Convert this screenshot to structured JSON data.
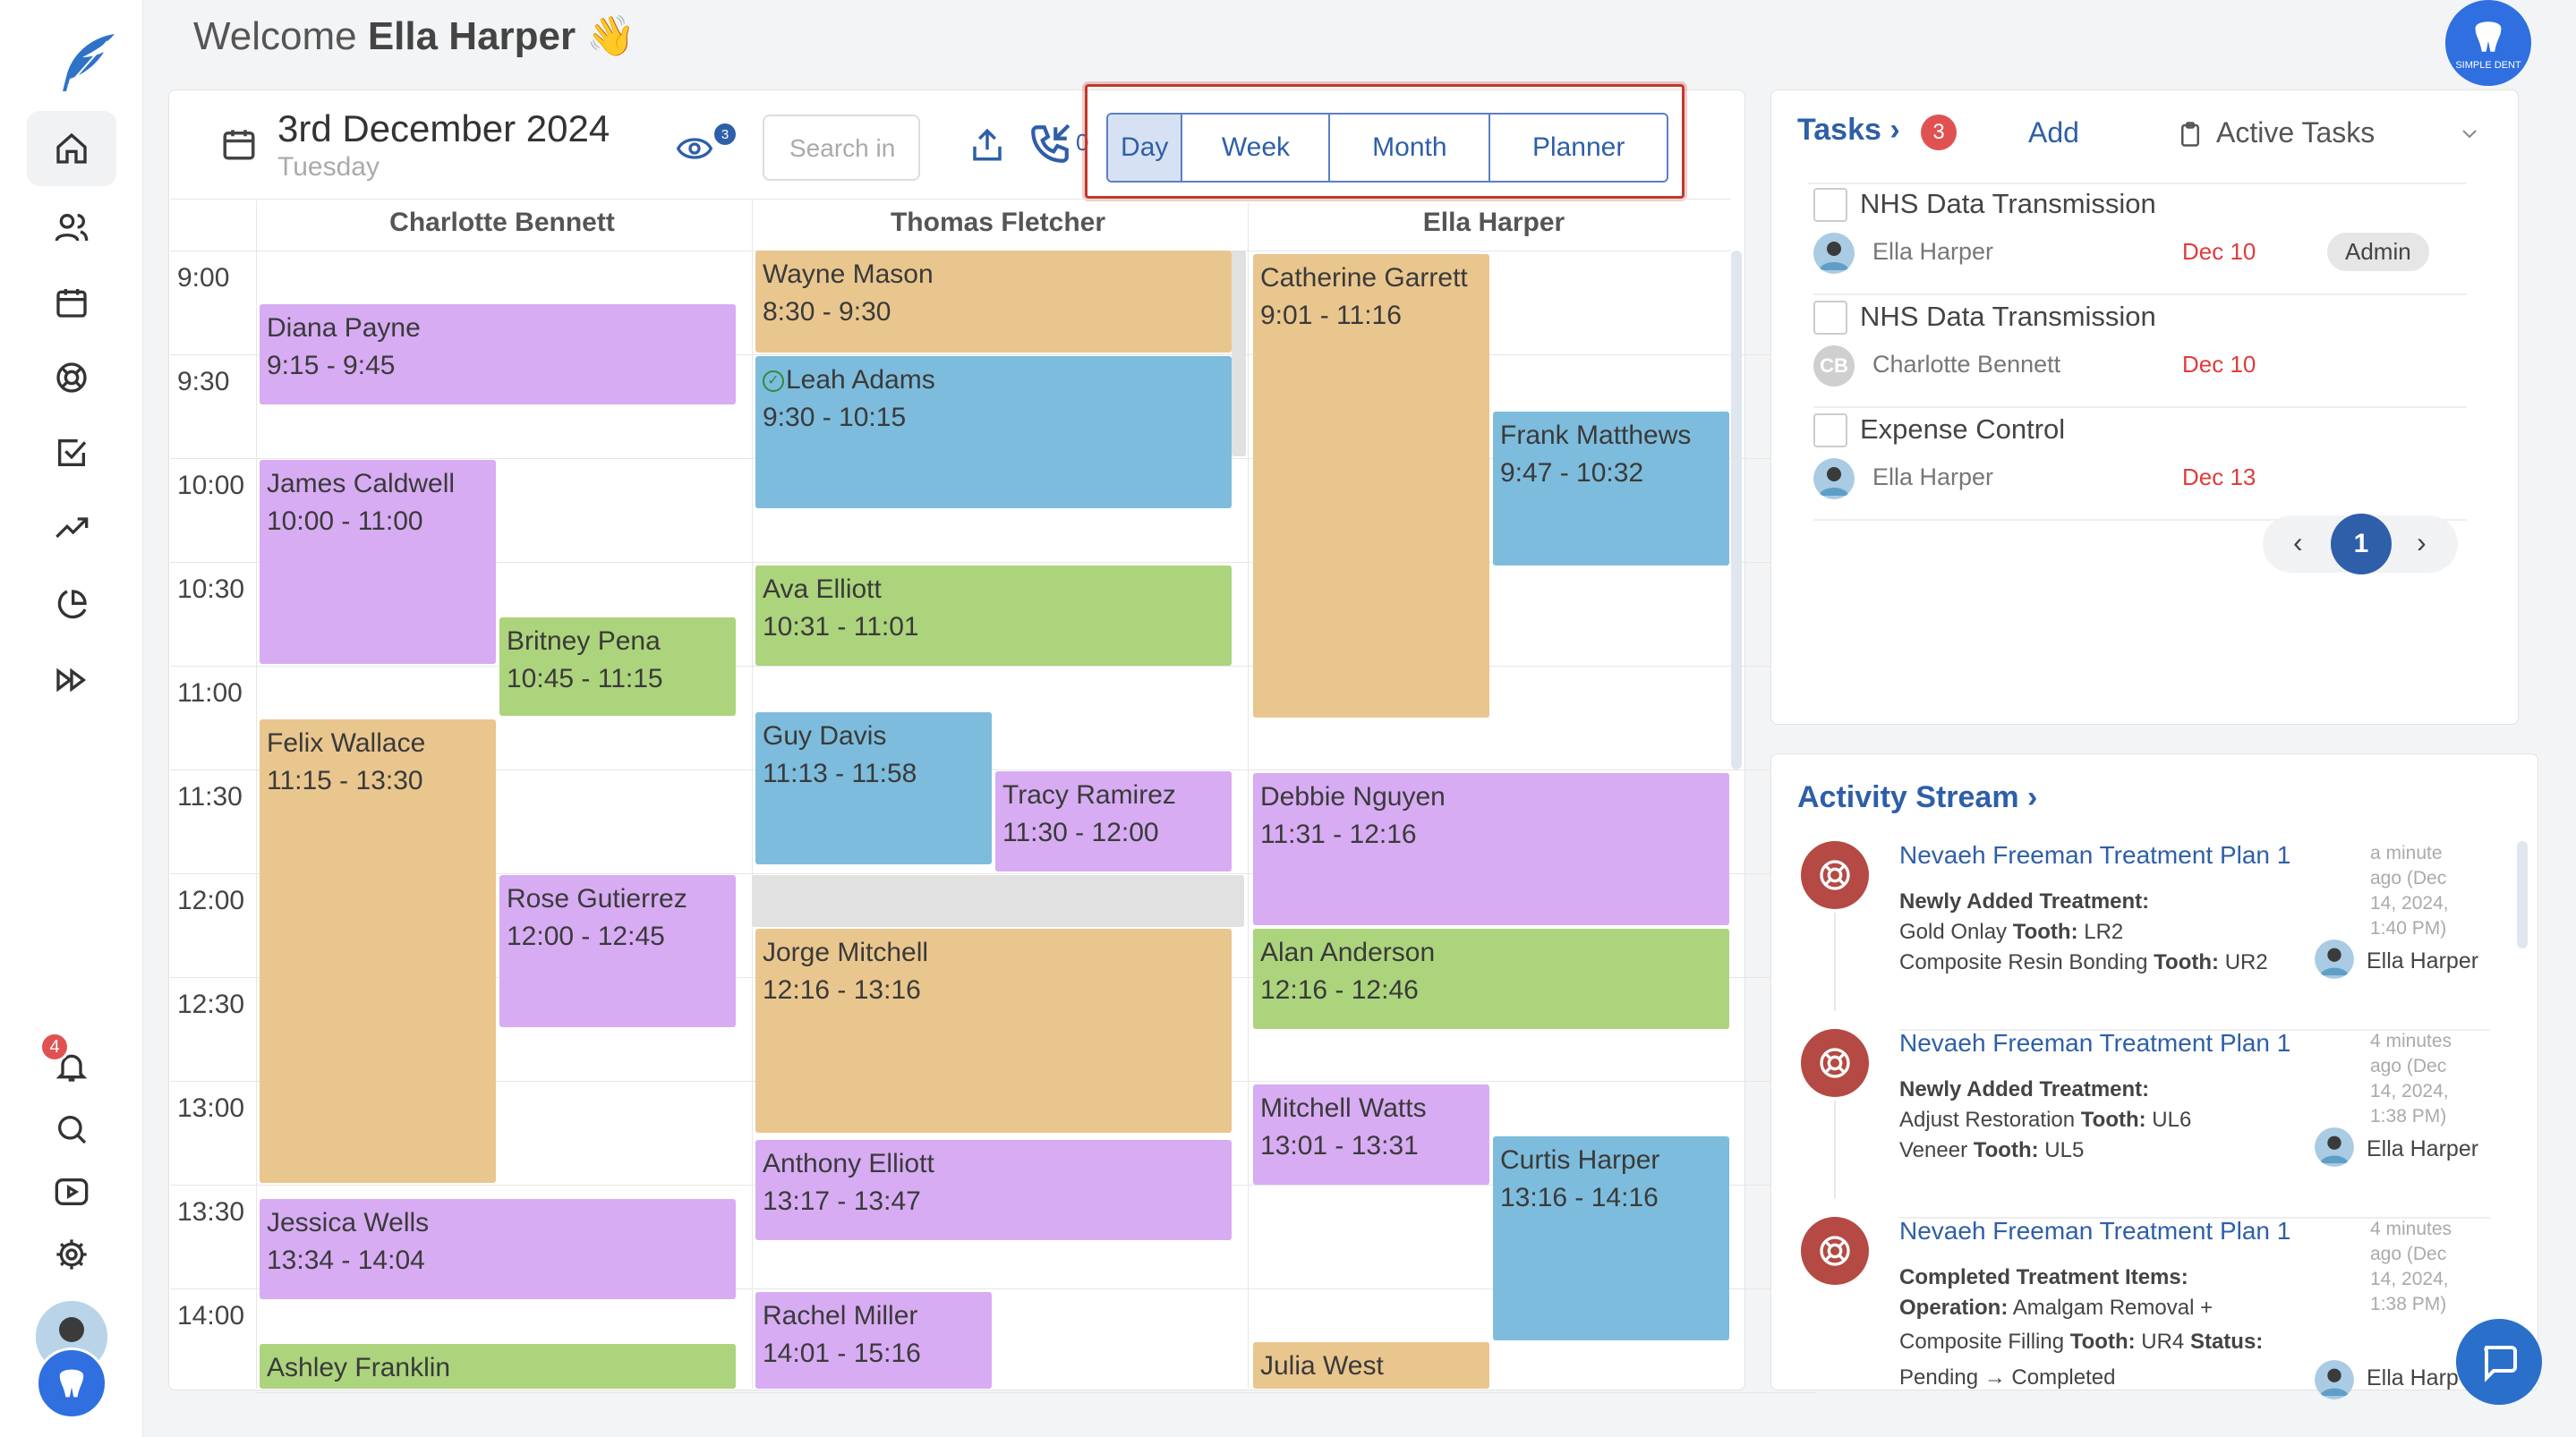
{
  "welcome": {
    "prefix": "Welcome",
    "name": "Ella Harper",
    "emoji": "👋"
  },
  "brand": {
    "badge_text": "SIMPLE DENT"
  },
  "notifications": {
    "count": "4"
  },
  "calendar": {
    "date": "3rd December 2024",
    "weekday": "Tuesday",
    "viewers_count": "3",
    "search_placeholder": "Search in",
    "calls_count": "0",
    "views": [
      "Day",
      "Week",
      "Month",
      "Planner"
    ],
    "active_view": "Day",
    "columns": [
      "Charlotte Bennett",
      "Thomas Fletcher",
      "Ella Harper"
    ],
    "times": [
      "9:00",
      "9:30",
      "10:00",
      "10:30",
      "11:00",
      "11:30",
      "12:00",
      "12:30",
      "13:00",
      "13:30",
      "14:00"
    ],
    "appointments": [
      {
        "name": "Diana Payne",
        "time": "9:15 - 9:45",
        "color": "purple"
      },
      {
        "name": "James Caldwell",
        "time": "10:00 - 11:00",
        "color": "purple"
      },
      {
        "name": "Britney Pena",
        "time": "10:45 - 11:15",
        "color": "green"
      },
      {
        "name": "Felix Wallace",
        "time": "11:15 - 13:30",
        "color": "orange"
      },
      {
        "name": "Rose Gutierrez",
        "time": "12:00 - 12:45",
        "color": "purple"
      },
      {
        "name": "Jessica Wells",
        "time": "13:34 - 14:04",
        "color": "purple"
      },
      {
        "name": "Ashley Franklin",
        "time": "",
        "color": "green"
      },
      {
        "name": "Wayne Mason",
        "time": "8:30 - 9:30",
        "color": "orange"
      },
      {
        "name": "Leah Adams",
        "time": "9:30 - 10:15",
        "color": "blue"
      },
      {
        "name": "Ava Elliott",
        "time": "10:31 - 11:01",
        "color": "green"
      },
      {
        "name": "Guy Davis",
        "time": "11:13 - 11:58",
        "color": "blue"
      },
      {
        "name": "Tracy Ramirez",
        "time": "11:30 - 12:00",
        "color": "purple"
      },
      {
        "name": "Jorge Mitchell",
        "time": "12:16 - 13:16",
        "color": "orange"
      },
      {
        "name": "Anthony Elliott",
        "time": "13:17 - 13:47",
        "color": "purple"
      },
      {
        "name": "Rachel Miller",
        "time": "14:01 - 15:16",
        "color": "purple"
      },
      {
        "name": "Catherine Garrett",
        "time": "9:01 - 11:16",
        "color": "orange"
      },
      {
        "name": "Frank Matthews",
        "time": "9:47 - 10:32",
        "color": "blue"
      },
      {
        "name": "Debbie Nguyen",
        "time": "11:31 - 12:16",
        "color": "purple"
      },
      {
        "name": "Alan Anderson",
        "time": "12:16 - 12:46",
        "color": "green"
      },
      {
        "name": "Mitchell Watts",
        "time": "13:01 - 13:31",
        "color": "purple"
      },
      {
        "name": "Curtis Harper",
        "time": "13:16 - 14:16",
        "color": "blue"
      },
      {
        "name": "Julia West",
        "time": "",
        "color": "orange"
      }
    ],
    "colors": {
      "purple": "#d7acf3",
      "orange": "#e9c68e",
      "blue": "#7dbcdc",
      "green": "#acd47c"
    }
  },
  "tasks": {
    "title": "Tasks",
    "count": "3",
    "add_label": "Add",
    "filter_label": "Active Tasks",
    "items": [
      {
        "name": "NHS Data Transmission",
        "assignee": "Ella Harper",
        "due": "Dec 10",
        "tag": "Admin",
        "initials": ""
      },
      {
        "name": "NHS Data Transmission",
        "assignee": "Charlotte Bennett",
        "due": "Dec 10",
        "tag": "",
        "initials": "CB"
      },
      {
        "name": "Expense Control",
        "assignee": "Ella Harper",
        "due": "Dec 13",
        "tag": "",
        "initials": ""
      }
    ],
    "page": "1"
  },
  "activity": {
    "title": "Activity Stream",
    "items": [
      {
        "title": "Nevaeh Freeman Treatment Plan 1",
        "ago": [
          "a minute",
          "ago (Dec",
          "14, 2024,",
          "1:40 PM)"
        ],
        "heading": "Newly Added Treatment:",
        "line1a": "Gold Onlay",
        "line1b": "Tooth:",
        "line1c": "LR2",
        "line2a": "Composite Resin Bonding",
        "line2b": "Tooth:",
        "line2c": "UR2",
        "user": "Ella Harper"
      },
      {
        "title": "Nevaeh Freeman Treatment Plan 1",
        "ago": [
          "4 minutes",
          "ago (Dec",
          "14, 2024,",
          "1:38 PM)"
        ],
        "heading": "Newly Added Treatment:",
        "line1a": "Adjust Restoration",
        "line1b": "Tooth:",
        "line1c": "UL6",
        "line2a": "Veneer",
        "line2b": "Tooth:",
        "line2c": "UL5",
        "user": "Ella Harper"
      },
      {
        "title": "Nevaeh Freeman Treatment Plan 1",
        "ago": [
          "4 minutes",
          "ago (Dec",
          "14, 2024,",
          "1:38 PM)"
        ],
        "heading": "Completed Treatment Items:",
        "line1a": "Operation:",
        "line1b": "Amalgam Removal +",
        "line2a": "Composite Filling",
        "line2b": "Tooth:",
        "line2c": "UR4",
        "line2d": "Status:",
        "line3": "Pending → Completed",
        "user": "Ella Harp"
      }
    ]
  }
}
